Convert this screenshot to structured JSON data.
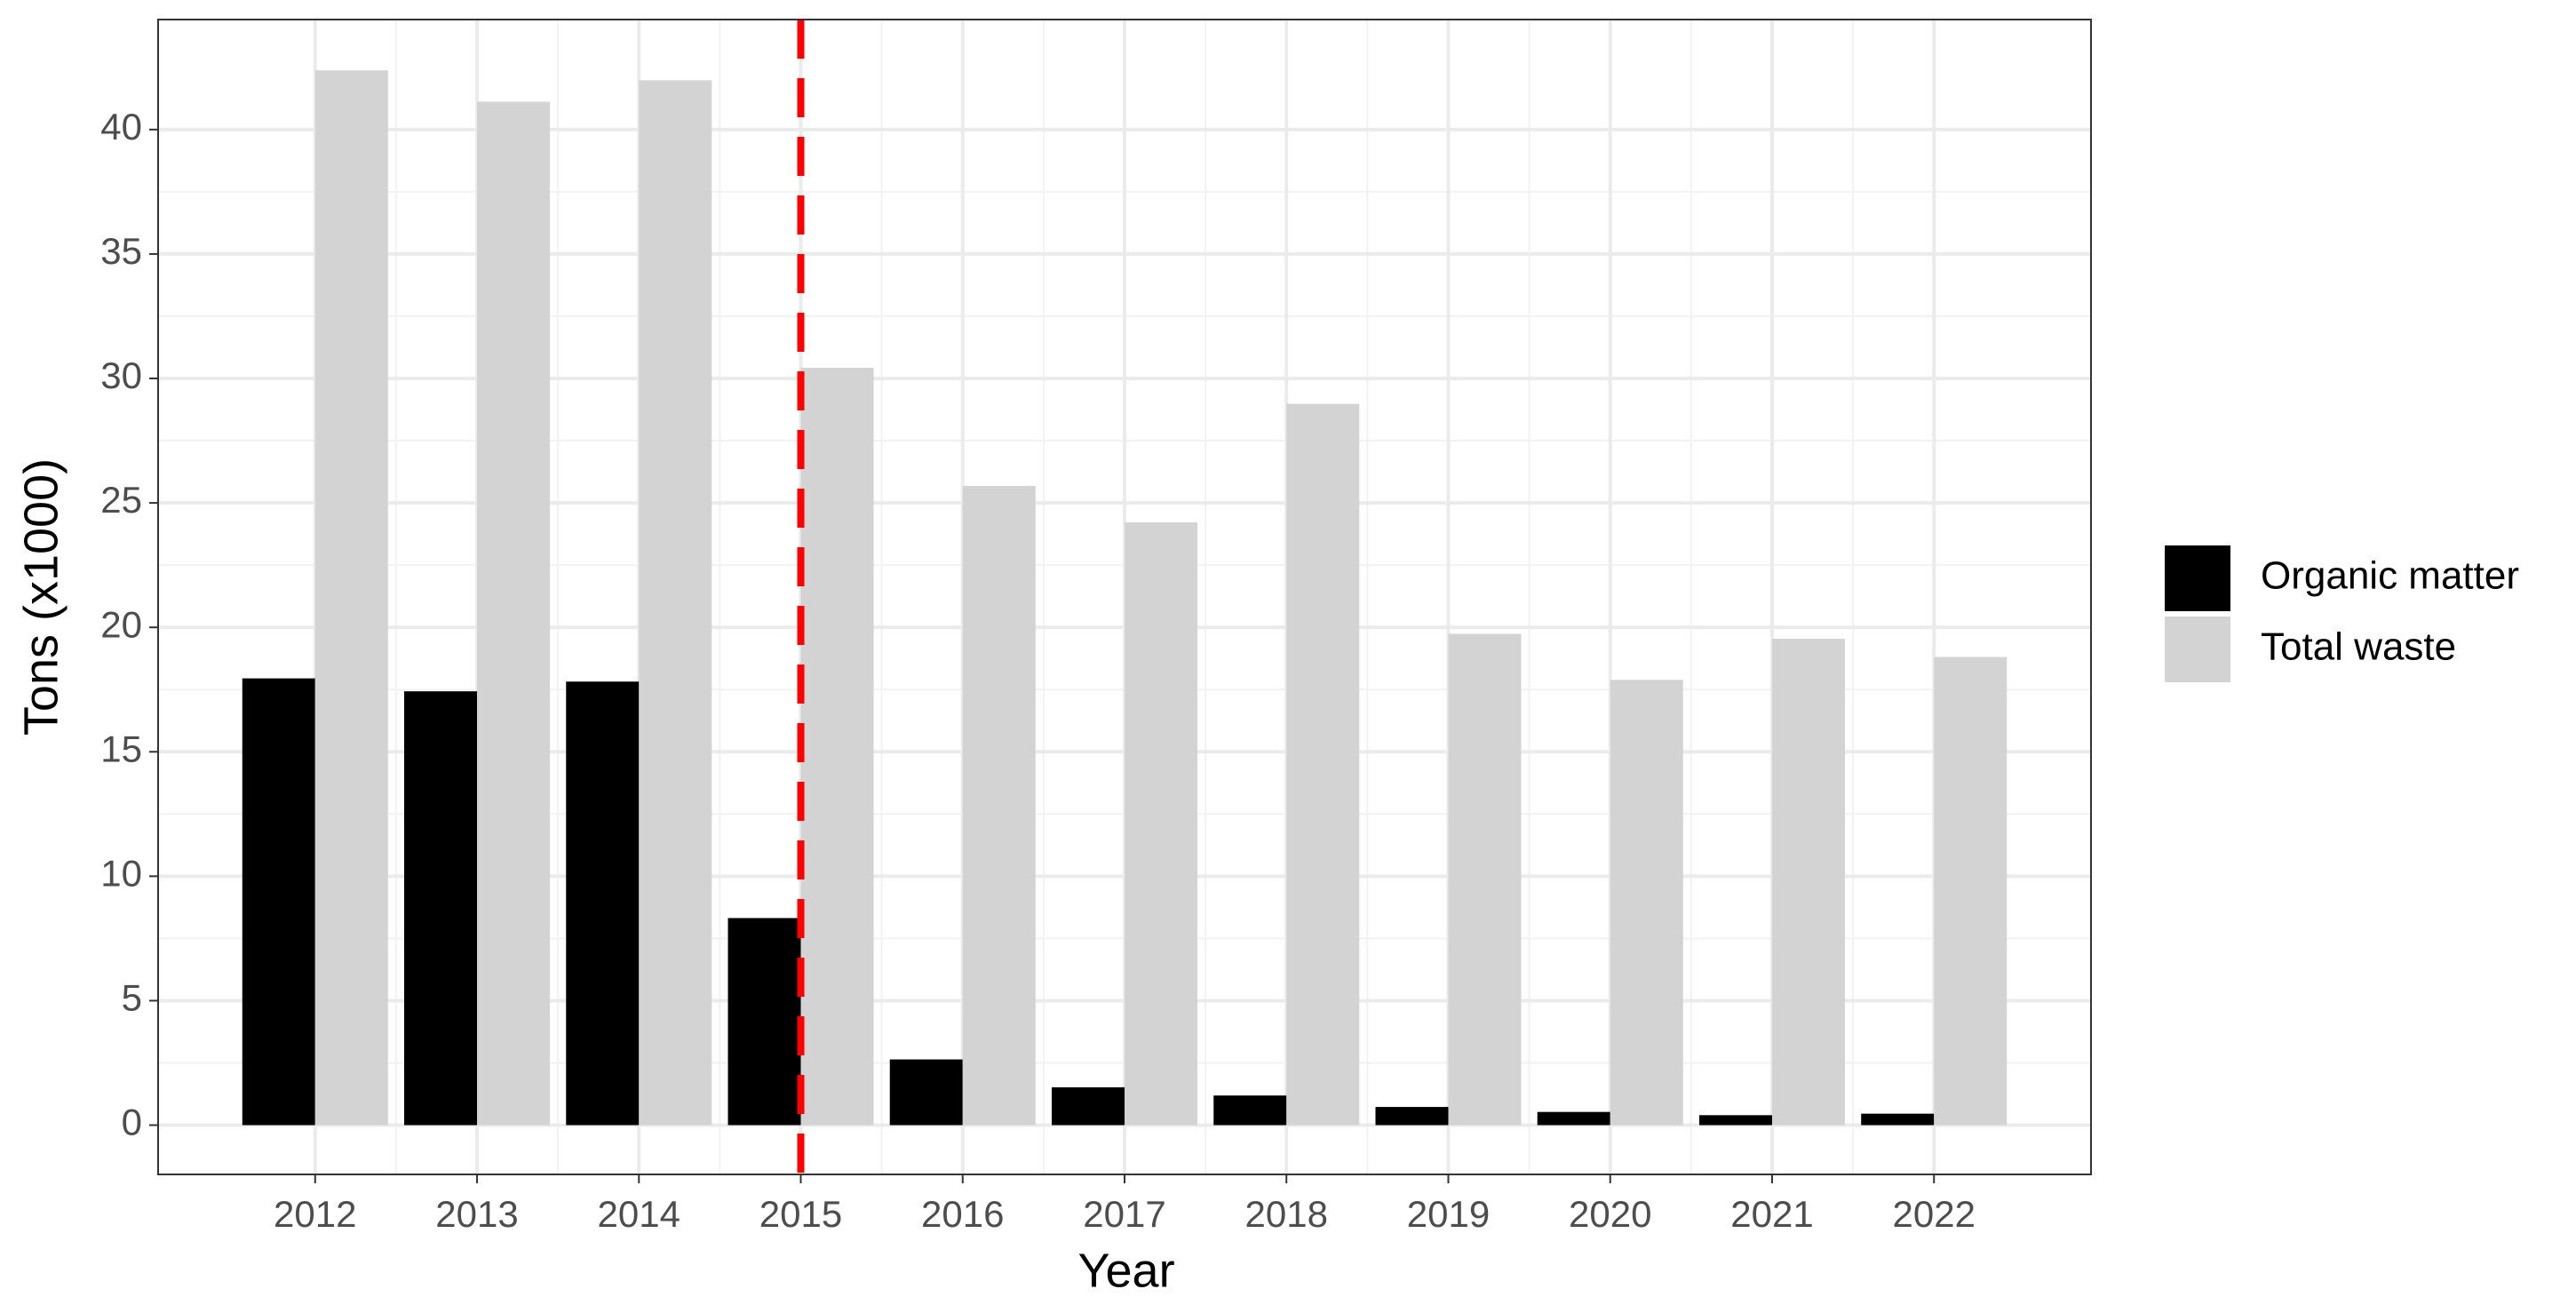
{
  "chart_data": {
    "type": "bar",
    "x_label": "Year",
    "y_label": "Tons (x1000)",
    "x": [
      2012,
      2013,
      2014,
      2015,
      2016,
      2017,
      2018,
      2019,
      2020,
      2021,
      2022
    ],
    "series": [
      {
        "name": "Organic matter",
        "color": "#000000",
        "values": [
          17.95,
          17.43,
          17.82,
          8.32,
          2.64,
          1.52,
          1.19,
          0.73,
          0.53,
          0.4,
          0.46
        ]
      },
      {
        "name": "Total waste",
        "color": "#d3d3d3",
        "values": [
          42.38,
          41.12,
          41.98,
          30.43,
          25.68,
          24.22,
          28.98,
          19.74,
          17.89,
          19.54,
          18.81
        ]
      }
    ],
    "xlim": [
      2011.03,
      2022.97
    ],
    "ylim": [
      -1.98,
      44.42
    ],
    "xticks": [
      2012,
      2013,
      2014,
      2015,
      2016,
      2017,
      2018,
      2019,
      2020,
      2021,
      2022
    ],
    "yticks": [
      0,
      5,
      10,
      15,
      20,
      25,
      30,
      35,
      40
    ],
    "grid": true,
    "minor_grid": true,
    "legend": "right",
    "reference_line": {
      "x": 2015,
      "color": "#ff0000"
    }
  }
}
